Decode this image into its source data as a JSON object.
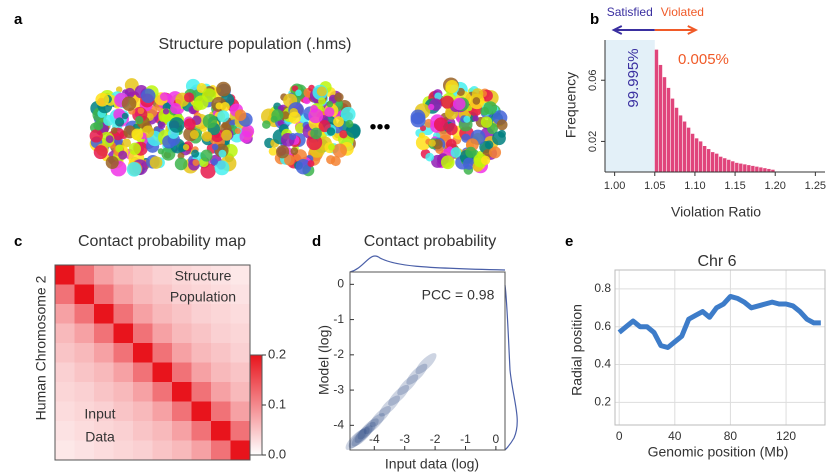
{
  "panel_a": {
    "label": "a",
    "title": "Structure population (.hms)",
    "ellipsis": "•••"
  },
  "chart_data": [
    {
      "type": "histogram",
      "label": "b",
      "xlabel": "Violation Ratio",
      "ylabel": "Frequency",
      "left_label": "Satisfied",
      "right_label": "Violated",
      "left_share": "99.995%",
      "right_share": "0.005%",
      "color": "#e0457b",
      "shade_color": "#e3f0f8",
      "left_color": "#3a2fa0",
      "right_color": "#f05a28",
      "bins": [
        1.05,
        1.055,
        1.06,
        1.065,
        1.07,
        1.075,
        1.08,
        1.085,
        1.09,
        1.095,
        1.1,
        1.105,
        1.11,
        1.115,
        1.12,
        1.125,
        1.13,
        1.135,
        1.14,
        1.145,
        1.15,
        1.155,
        1.16,
        1.165,
        1.17,
        1.175,
        1.18,
        1.185,
        1.19,
        1.195,
        1.2
      ],
      "values": [
        0.08,
        0.07,
        0.062,
        0.055,
        0.048,
        0.042,
        0.037,
        0.033,
        0.029,
        0.025,
        0.022,
        0.02,
        0.017,
        0.015,
        0.013,
        0.012,
        0.01,
        0.009,
        0.008,
        0.007,
        0.006,
        0.0055,
        0.005,
        0.0045,
        0.004,
        0.0035,
        0.003,
        0.0025,
        0.002,
        0.0015
      ],
      "xlim": [
        0.988,
        1.262
      ],
      "xticks": [
        {
          "value": 1.0,
          "label": "1.00"
        },
        1.05,
        {
          "value": 1.1,
          "label": "1.10"
        },
        1.15,
        {
          "value": 1.2,
          "label": "1.20"
        },
        1.25
      ],
      "ylim": [
        0,
        0.085
      ],
      "yticks": [
        0.02,
        0.06
      ]
    },
    {
      "type": "heatmap",
      "label": "c",
      "title": "Contact probability map",
      "ylabel": "Human Chromosome 2",
      "annotations": [
        "Structure",
        "Population",
        "Input",
        "Data"
      ],
      "zlim": [
        0,
        0.2
      ],
      "cticks": [
        {
          "value": 0,
          "label": "0.0"
        },
        0.1,
        0.2
      ],
      "matrix": [
        [
          0.2,
          0.12,
          0.08,
          0.06,
          0.05,
          0.04,
          0.035,
          0.03,
          0.025,
          0.02
        ],
        [
          0.12,
          0.2,
          0.12,
          0.08,
          0.06,
          0.05,
          0.04,
          0.035,
          0.03,
          0.025
        ],
        [
          0.08,
          0.12,
          0.2,
          0.12,
          0.08,
          0.06,
          0.05,
          0.04,
          0.035,
          0.03
        ],
        [
          0.06,
          0.08,
          0.12,
          0.2,
          0.12,
          0.08,
          0.06,
          0.05,
          0.04,
          0.035
        ],
        [
          0.05,
          0.06,
          0.08,
          0.12,
          0.2,
          0.12,
          0.08,
          0.06,
          0.05,
          0.04
        ],
        [
          0.04,
          0.05,
          0.06,
          0.08,
          0.12,
          0.2,
          0.12,
          0.08,
          0.06,
          0.05
        ],
        [
          0.035,
          0.04,
          0.05,
          0.06,
          0.08,
          0.12,
          0.2,
          0.12,
          0.08,
          0.06
        ],
        [
          0.03,
          0.035,
          0.04,
          0.05,
          0.06,
          0.08,
          0.12,
          0.2,
          0.12,
          0.08
        ],
        [
          0.025,
          0.03,
          0.035,
          0.04,
          0.05,
          0.06,
          0.08,
          0.12,
          0.2,
          0.12
        ],
        [
          0.02,
          0.025,
          0.03,
          0.035,
          0.04,
          0.05,
          0.06,
          0.08,
          0.12,
          0.2
        ]
      ]
    },
    {
      "type": "density",
      "label": "d",
      "title": "Contact probability",
      "xlabel": "Input data (log)",
      "ylabel": "Model (log)",
      "annotation": "PCC = 0.98",
      "color": "#1a3a7a",
      "x": [
        -4.6,
        -4.5,
        -4.4,
        -4.3,
        -4.2,
        -4.0,
        -3.8,
        -3.5,
        -3.2,
        -2.9,
        -2.6,
        -2.3
      ],
      "y": [
        -4.4,
        -4.35,
        -4.3,
        -4.2,
        -4.1,
        -3.95,
        -3.75,
        -3.45,
        -3.15,
        -2.85,
        -2.55,
        -2.25
      ],
      "xlim": [
        -4.8,
        0.3
      ],
      "xticks": [
        -4,
        -3,
        -2,
        -1,
        0
      ],
      "ylim": [
        -4.7,
        0.35
      ],
      "yticks": [
        -4,
        -3,
        -2,
        -1,
        0
      ]
    },
    {
      "type": "line",
      "label": "e",
      "title": "Chr 6",
      "xlabel": "Genomic position (Mb)",
      "ylabel": "Radial position",
      "color": "#3d7cc9",
      "grid": true,
      "x": [
        0,
        5,
        10,
        15,
        20,
        25,
        30,
        35,
        40,
        45,
        50,
        55,
        60,
        65,
        70,
        75,
        80,
        85,
        90,
        95,
        100,
        105,
        110,
        115,
        120,
        125,
        130,
        135,
        140,
        145
      ],
      "values": [
        0.57,
        0.6,
        0.63,
        0.6,
        0.6,
        0.57,
        0.5,
        0.49,
        0.52,
        0.55,
        0.64,
        0.66,
        0.68,
        0.65,
        0.7,
        0.72,
        0.76,
        0.75,
        0.73,
        0.7,
        0.71,
        0.72,
        0.73,
        0.72,
        0.72,
        0.71,
        0.68,
        0.64,
        0.62,
        0.62
      ],
      "xlim": [
        -3,
        148
      ],
      "xticks": [
        0,
        40,
        80,
        120
      ],
      "ylim": [
        0.08,
        0.9
      ],
      "yticks": [
        0.2,
        0.4,
        0.6,
        0.8
      ]
    }
  ]
}
